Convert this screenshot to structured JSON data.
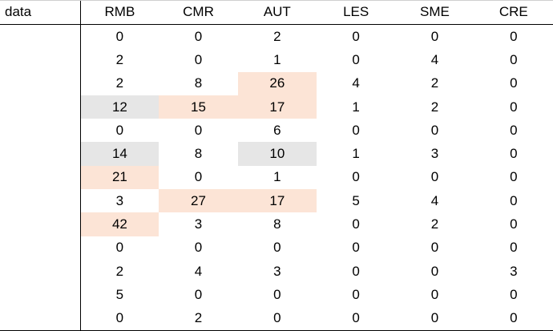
{
  "table": {
    "corner_label": "data",
    "columns": [
      "RMB",
      "CMR",
      "AUT",
      "LES",
      "SME",
      "CRE"
    ],
    "rows": [
      [
        0,
        0,
        2,
        0,
        0,
        0
      ],
      [
        2,
        0,
        1,
        0,
        4,
        0
      ],
      [
        2,
        8,
        26,
        4,
        2,
        0
      ],
      [
        12,
        15,
        17,
        1,
        2,
        0
      ],
      [
        0,
        0,
        6,
        0,
        0,
        0
      ],
      [
        14,
        8,
        10,
        1,
        3,
        0
      ],
      [
        21,
        0,
        1,
        0,
        0,
        0
      ],
      [
        3,
        27,
        17,
        5,
        4,
        0
      ],
      [
        42,
        3,
        8,
        0,
        2,
        0
      ],
      [
        0,
        0,
        0,
        0,
        0,
        0
      ],
      [
        2,
        4,
        3,
        0,
        0,
        3
      ],
      [
        5,
        0,
        0,
        0,
        0,
        0
      ],
      [
        0,
        2,
        0,
        0,
        0,
        0
      ]
    ],
    "highlights": [
      {
        "row": 2,
        "col": 2,
        "color": "#fce4d6"
      },
      {
        "row": 3,
        "col": 0,
        "color": "#e6e6e6"
      },
      {
        "row": 3,
        "col": 1,
        "color": "#fce4d6"
      },
      {
        "row": 3,
        "col": 2,
        "color": "#fce4d6"
      },
      {
        "row": 5,
        "col": 0,
        "color": "#e6e6e6"
      },
      {
        "row": 5,
        "col": 2,
        "color": "#e6e6e6"
      },
      {
        "row": 6,
        "col": 0,
        "color": "#fce4d6"
      },
      {
        "row": 7,
        "col": 1,
        "color": "#fce4d6"
      },
      {
        "row": 7,
        "col": 2,
        "color": "#fce4d6"
      },
      {
        "row": 8,
        "col": 0,
        "color": "#fce4d6"
      }
    ]
  }
}
